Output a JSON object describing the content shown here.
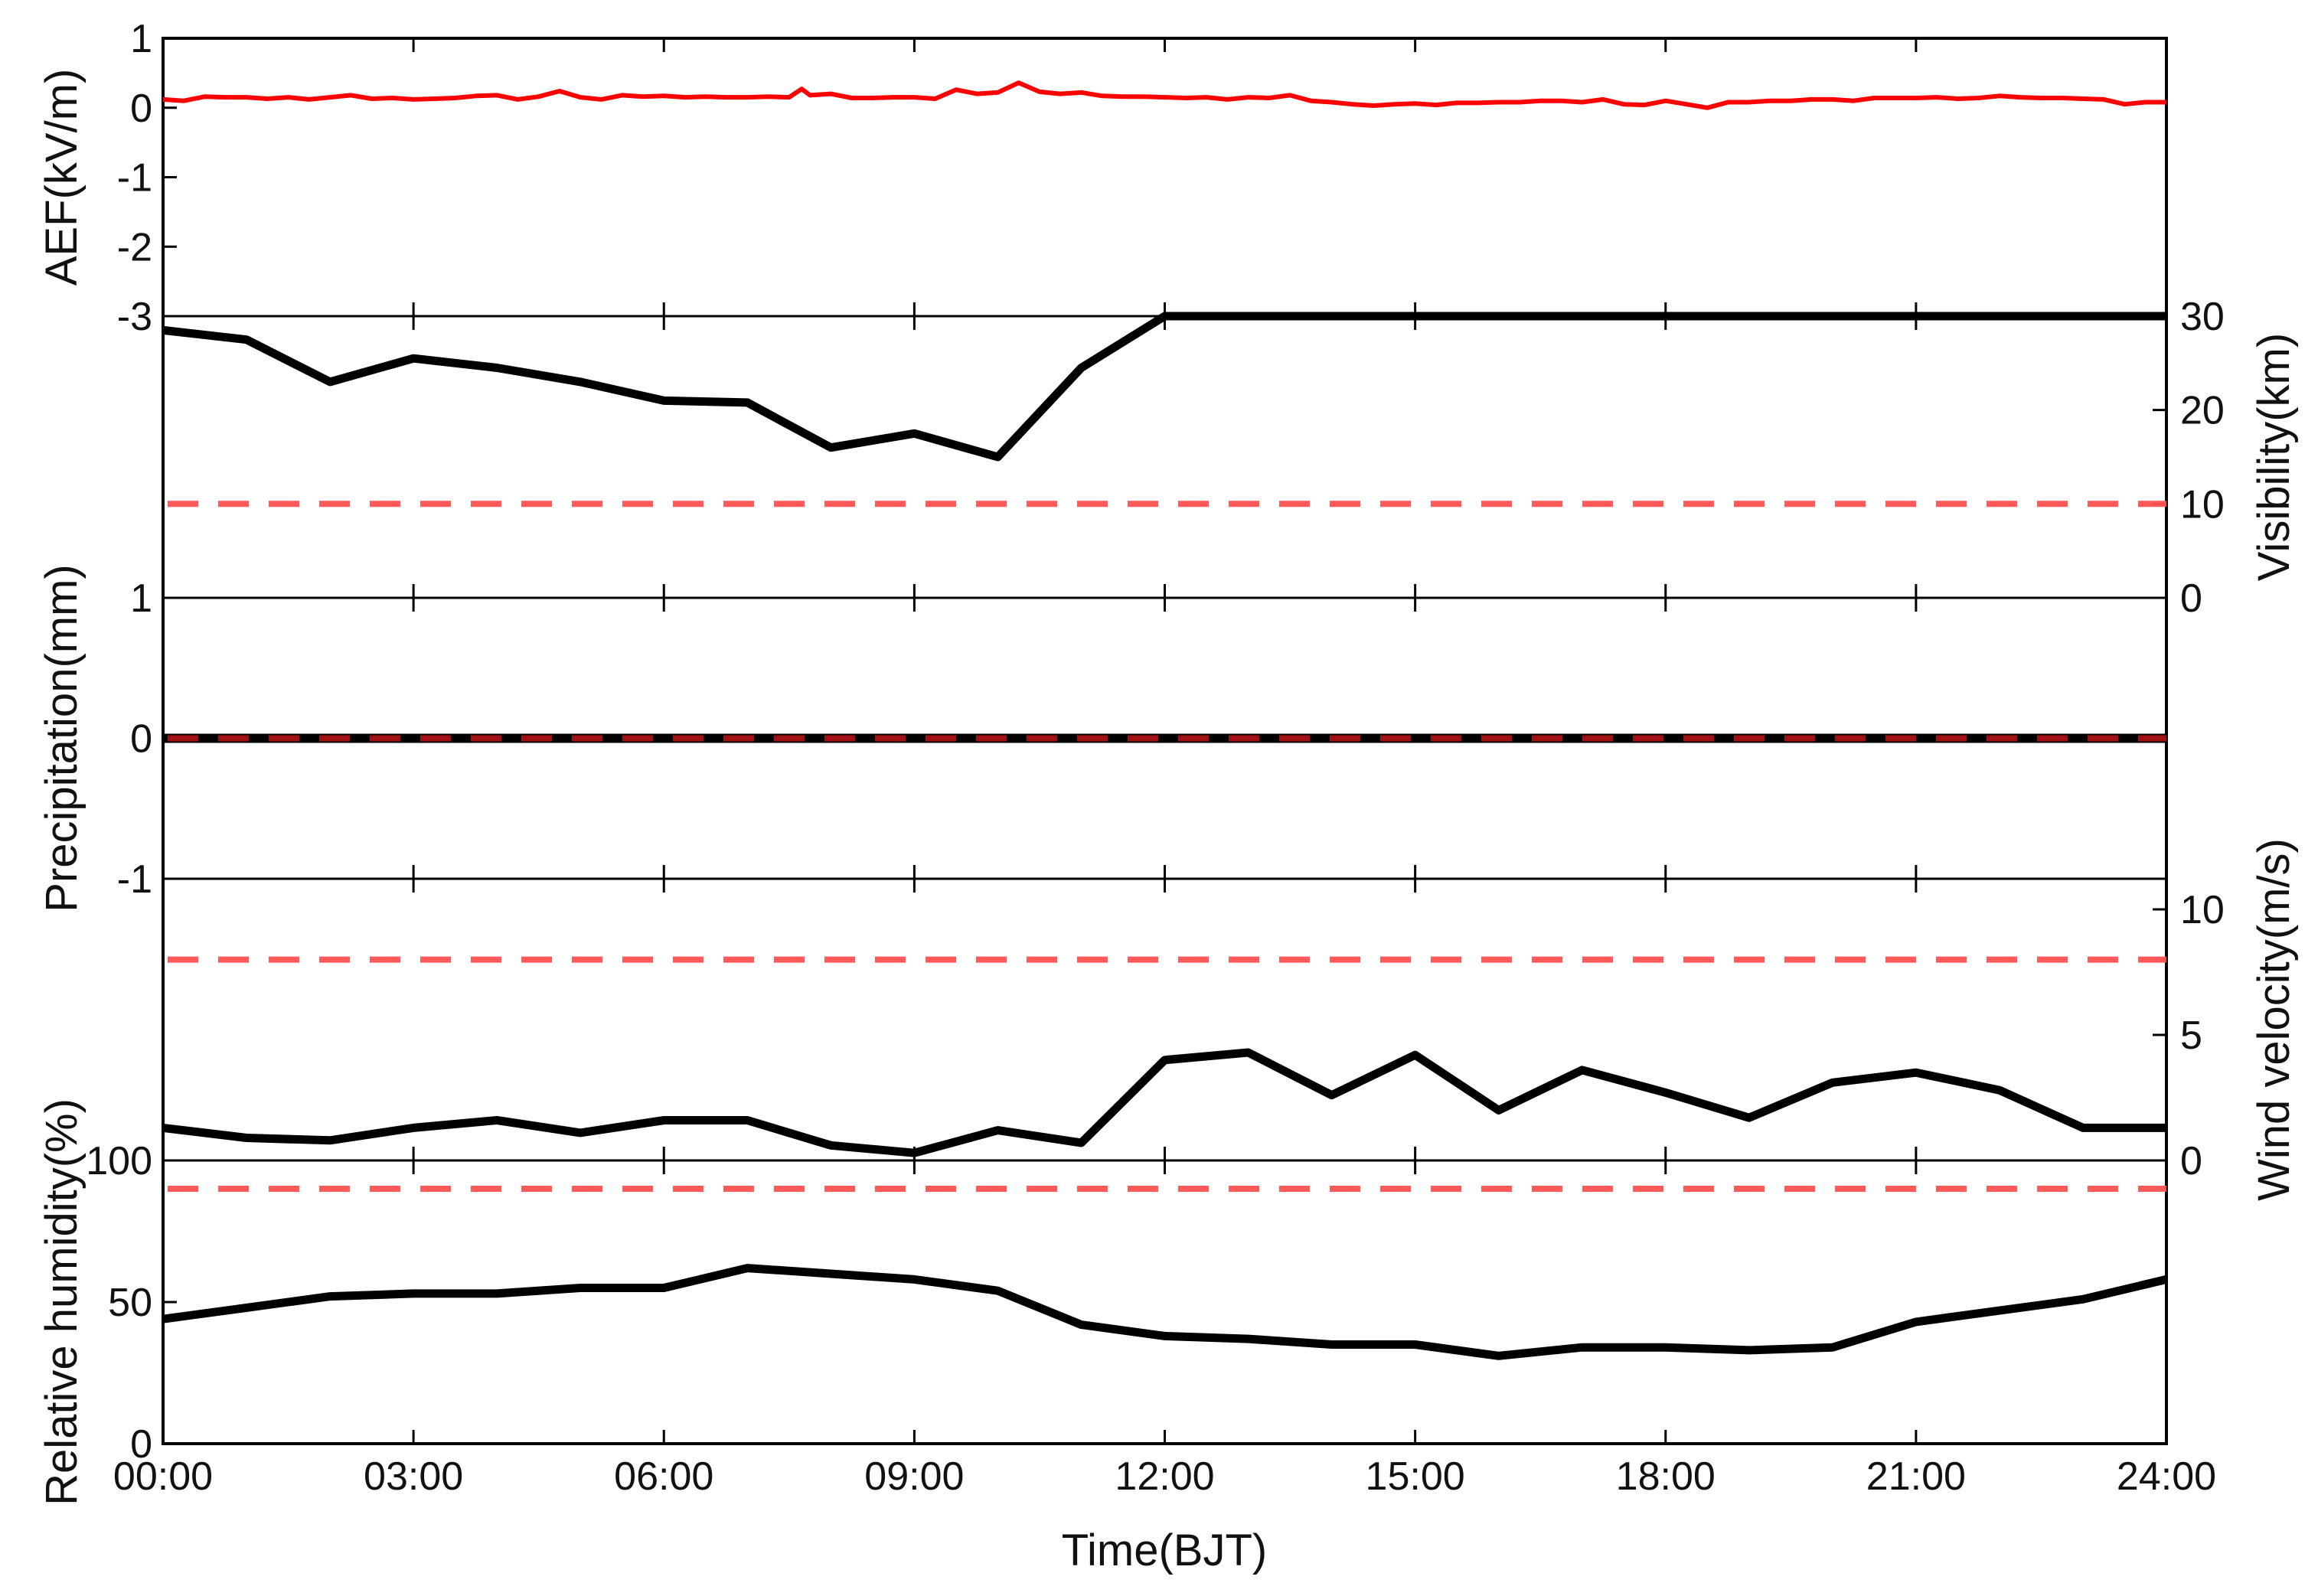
{
  "chart_data": {
    "type": "line",
    "xlabel": "Time(BJT)",
    "x_ticks": [
      "00:00",
      "03:00",
      "06:00",
      "09:00",
      "12:00",
      "15:00",
      "18:00",
      "21:00",
      "24:00"
    ],
    "xlim": [
      0,
      24
    ],
    "grid": false,
    "panels": [
      {
        "id": "aef",
        "ylabel": "AEF(kV/m)",
        "ylabel_side": "left",
        "ylim": [
          -3,
          1
        ],
        "yticks": [
          1,
          0,
          -1,
          -2,
          -3
        ],
        "series": [
          {
            "color": "#ff0000",
            "style": "solid",
            "x": [
              0,
              0.25,
              0.5,
              0.75,
              1,
              1.25,
              1.5,
              1.75,
              2,
              2.25,
              2.5,
              2.75,
              3,
              3.25,
              3.5,
              3.75,
              4,
              4.25,
              4.5,
              4.75,
              5,
              5.25,
              5.5,
              5.75,
              6,
              6.25,
              6.5,
              6.75,
              7,
              7.25,
              7.5,
              7.65,
              7.75,
              8,
              8.25,
              8.5,
              8.75,
              9,
              9.25,
              9.5,
              9.75,
              10,
              10.25,
              10.5,
              10.75,
              11,
              11.25,
              11.5,
              11.75,
              12,
              12.25,
              12.5,
              12.75,
              13,
              13.25,
              13.5,
              13.75,
              14,
              14.25,
              14.5,
              14.75,
              15,
              15.25,
              15.5,
              15.75,
              16,
              16.25,
              16.5,
              16.75,
              17,
              17.25,
              17.5,
              17.75,
              18,
              18.25,
              18.5,
              18.75,
              19,
              19.25,
              19.5,
              19.75,
              20,
              20.25,
              20.5,
              20.75,
              21,
              21.25,
              21.5,
              21.75,
              22,
              22.25,
              22.5,
              22.75,
              23,
              23.25,
              23.5,
              23.75,
              24
            ],
            "y": [
              0.12,
              0.1,
              0.16,
              0.15,
              0.15,
              0.13,
              0.15,
              0.12,
              0.15,
              0.18,
              0.13,
              0.14,
              0.12,
              0.13,
              0.14,
              0.17,
              0.18,
              0.12,
              0.16,
              0.24,
              0.15,
              0.12,
              0.18,
              0.16,
              0.17,
              0.15,
              0.16,
              0.15,
              0.15,
              0.16,
              0.15,
              0.27,
              0.18,
              0.2,
              0.14,
              0.14,
              0.15,
              0.15,
              0.13,
              0.26,
              0.2,
              0.22,
              0.36,
              0.23,
              0.2,
              0.22,
              0.17,
              0.16,
              0.16,
              0.15,
              0.14,
              0.15,
              0.12,
              0.15,
              0.14,
              0.18,
              0.1,
              0.08,
              0.05,
              0.03,
              0.05,
              0.06,
              0.04,
              0.07,
              0.07,
              0.08,
              0.08,
              0.1,
              0.1,
              0.08,
              0.12,
              0.05,
              0.04,
              0.1,
              0.05,
              0.0,
              0.08,
              0.08,
              0.1,
              0.1,
              0.12,
              0.12,
              0.1,
              0.14,
              0.14,
              0.14,
              0.15,
              0.13,
              0.14,
              0.17,
              0.15,
              0.14,
              0.14,
              0.13,
              0.12,
              0.05,
              0.08,
              0.08
            ]
          }
        ]
      },
      {
        "id": "visibility",
        "ylabel": "Visibility(km)",
        "ylabel_side": "right",
        "ylim": [
          0,
          30
        ],
        "yticks": [
          30,
          20,
          10,
          0
        ],
        "series": [
          {
            "color": "#000000",
            "style": "solid",
            "x": [
              0,
              1,
              2,
              3,
              4,
              5,
              6,
              7,
              8,
              9,
              10,
              11,
              12,
              13,
              14,
              15,
              16,
              17,
              18,
              19,
              20,
              21,
              22,
              23,
              24
            ],
            "y": [
              28.5,
              27.5,
              23,
              25.5,
              24.5,
              23,
              21,
              20.8,
              16,
              17.5,
              15,
              24.5,
              30,
              30,
              30,
              30,
              30,
              30,
              30,
              30,
              30,
              30,
              30,
              30,
              30
            ]
          },
          {
            "color": "#ff5050",
            "style": "dashed",
            "x": [
              0,
              24
            ],
            "y": [
              10,
              10
            ]
          }
        ]
      },
      {
        "id": "precipitation",
        "ylabel": "Precipitation(mm)",
        "ylabel_side": "left",
        "ylim": [
          -1,
          1
        ],
        "yticks": [
          1,
          0,
          -1
        ],
        "series": [
          {
            "color": "#000000",
            "style": "solid",
            "x": [
              0,
              24
            ],
            "y": [
              0,
              0
            ]
          },
          {
            "color": "#a01010",
            "style": "dashed",
            "x": [
              0,
              24
            ],
            "y": [
              0,
              0
            ]
          }
        ]
      },
      {
        "id": "wind",
        "ylabel": "Wind velocity(m/s)",
        "ylabel_side": "right",
        "ylim": [
          0,
          10.8
        ],
        "yticks": [
          10,
          5,
          0
        ],
        "series": [
          {
            "color": "#000000",
            "style": "solid",
            "x": [
              0,
              1,
              2,
              3,
              4,
              5,
              6,
              7,
              8,
              9,
              10,
              11,
              12,
              13,
              14,
              15,
              16,
              17,
              18,
              19,
              20,
              21,
              22,
              23,
              24
            ],
            "y": [
              1.3,
              0.9,
              0.8,
              1.3,
              1.6,
              1.1,
              1.6,
              1.6,
              0.6,
              0.3,
              1.2,
              0.7,
              4.0,
              4.3,
              2.6,
              4.2,
              2.0,
              3.6,
              2.7,
              1.7,
              3.1,
              3.5,
              2.8,
              1.3,
              1.3
            ]
          },
          {
            "color": "#ff5050",
            "style": "dashed",
            "x": [
              0,
              24
            ],
            "y": [
              8,
              8
            ]
          }
        ]
      },
      {
        "id": "humidity",
        "ylabel": "Relative humidity(%)",
        "ylabel_side": "left",
        "ylim": [
          0,
          100
        ],
        "yticks": [
          100,
          50,
          0
        ],
        "series": [
          {
            "color": "#000000",
            "style": "solid",
            "x": [
              0,
              1,
              2,
              3,
              4,
              5,
              6,
              7,
              8,
              9,
              10,
              11,
              12,
              13,
              14,
              15,
              16,
              17,
              18,
              19,
              20,
              21,
              22,
              23,
              24
            ],
            "y": [
              44,
              48,
              52,
              53,
              53,
              55,
              55,
              62,
              60,
              58,
              54,
              42,
              38,
              37,
              35,
              35,
              31,
              34,
              34,
              33,
              34,
              43,
              47,
              51,
              58
            ]
          },
          {
            "color": "#ff5050",
            "style": "dashed",
            "x": [
              0,
              24
            ],
            "y": [
              90,
              90
            ]
          }
        ]
      }
    ]
  }
}
